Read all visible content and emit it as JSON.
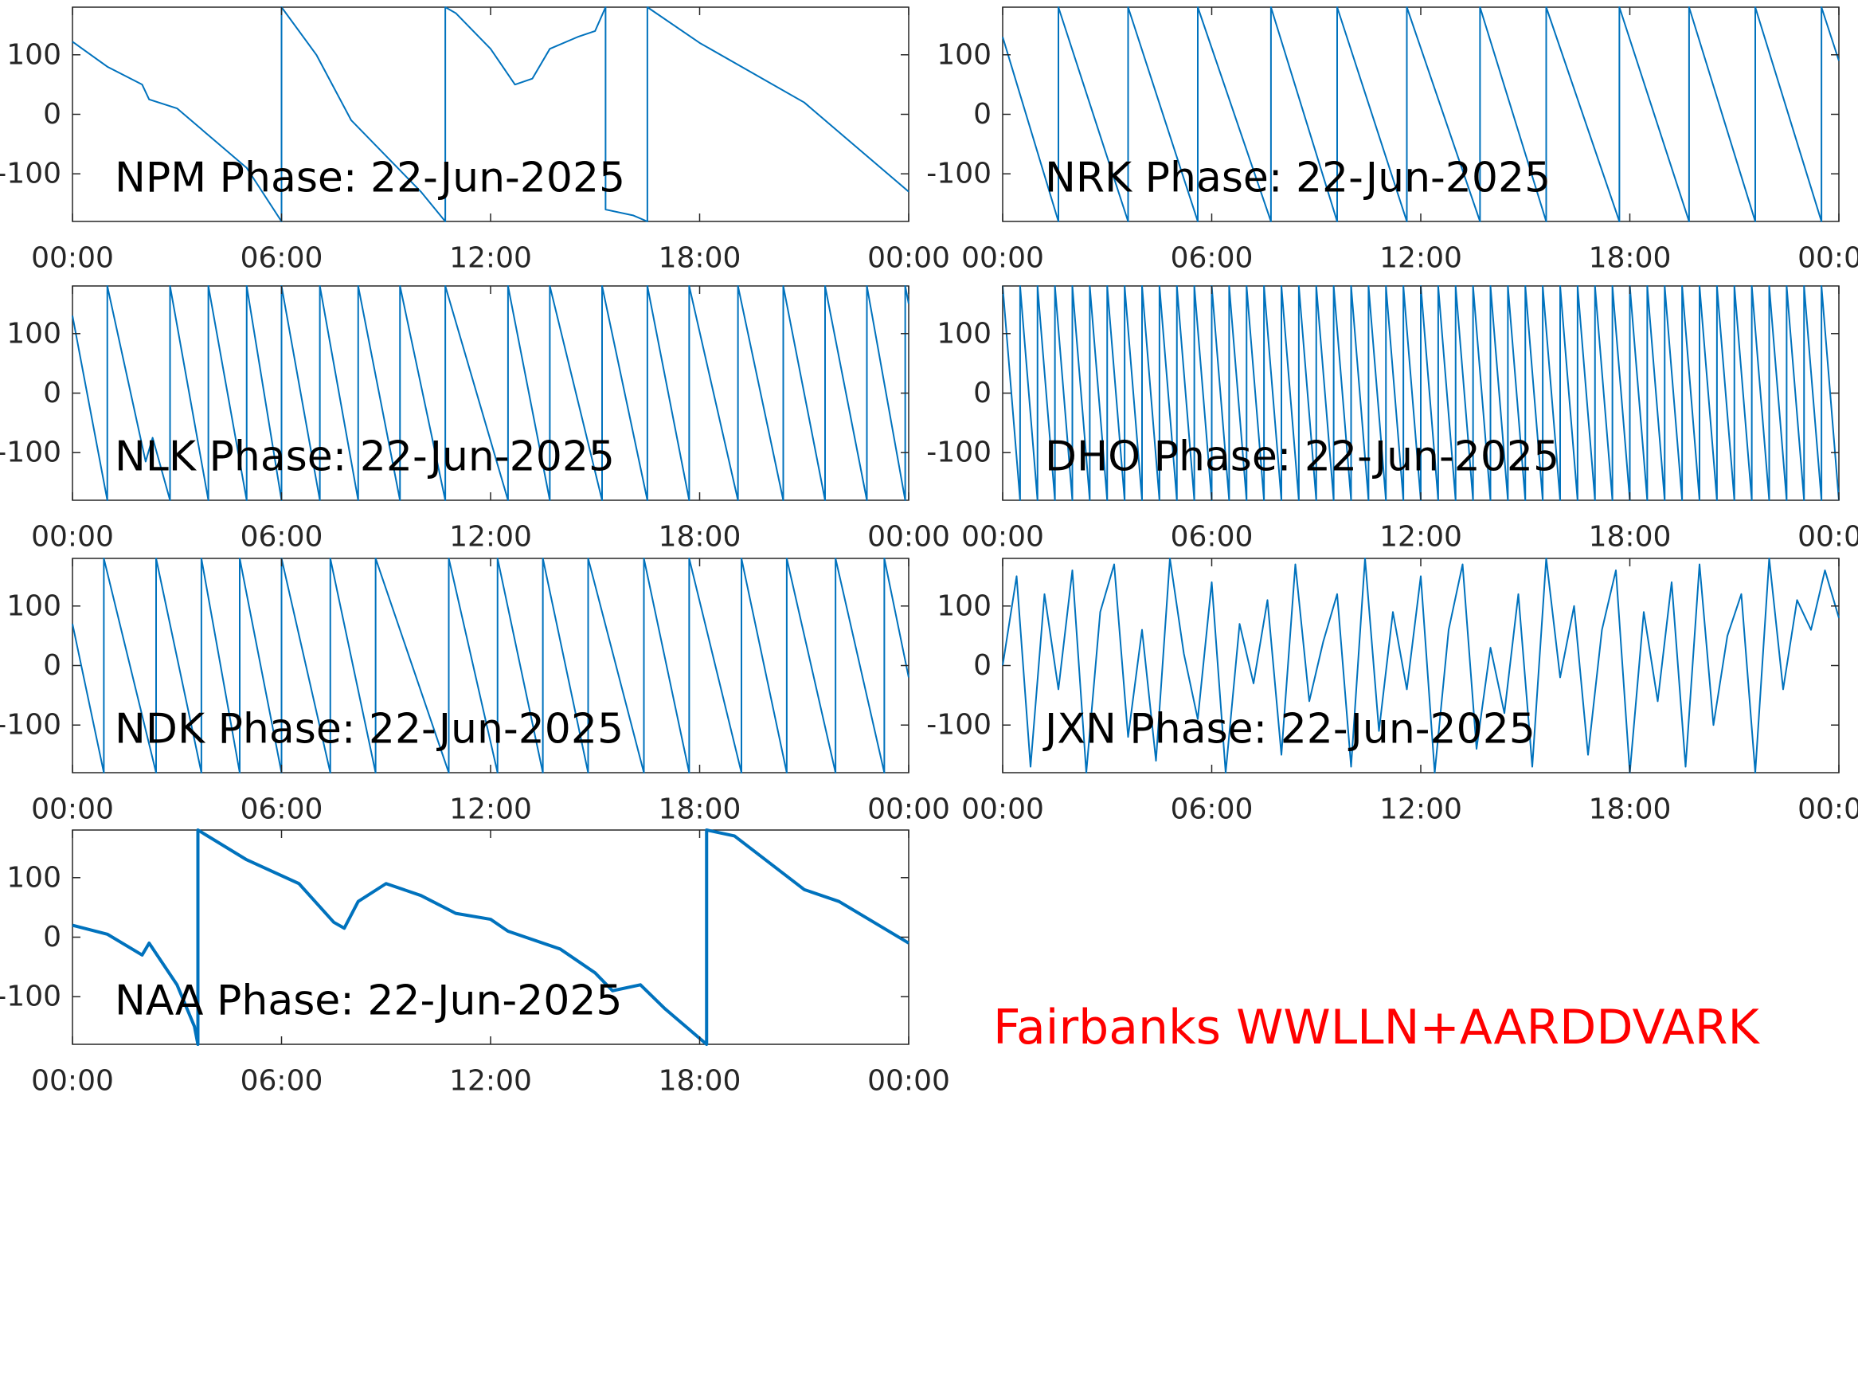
{
  "chart_data": [
    {
      "type": "line",
      "title": "NPM Phase: 22-Jun-2025",
      "color": "#0072bd",
      "line_width": 2,
      "x": [
        0,
        1,
        2,
        2.2,
        3,
        4,
        5,
        6,
        6,
        7,
        8,
        9,
        10,
        10.7,
        10.7,
        11,
        12,
        12.7,
        13.2,
        13.7,
        14.5,
        15,
        15.3,
        15.3,
        16.1,
        16.5,
        16.5,
        18,
        21,
        24
      ],
      "values": [
        122,
        80,
        50,
        25,
        10,
        -40,
        -90,
        -180,
        180,
        100,
        -10,
        -70,
        -130,
        -180,
        180,
        170,
        110,
        50,
        60,
        110,
        130,
        140,
        180,
        -160,
        -170,
        -180,
        180,
        120,
        20,
        -130
      ],
      "xlim": [
        0,
        24
      ],
      "xticks": [
        {
          "value": 0,
          "label": "00:00"
        },
        {
          "value": 6,
          "label": "06:00"
        },
        {
          "value": 12,
          "label": "12:00"
        },
        {
          "value": 18,
          "label": "18:00"
        },
        {
          "value": 24,
          "label": "00:00"
        }
      ],
      "ylim": [
        -180,
        180
      ],
      "yticks": [
        -100,
        0,
        100
      ]
    },
    {
      "type": "line",
      "title": "NRK Phase: 22-Jun-2025",
      "color": "#0072bd",
      "line_width": 2,
      "x": [
        0,
        1.6,
        1.6,
        3.6,
        3.6,
        5.6,
        5.6,
        7.7,
        7.7,
        9.6,
        9.6,
        11.6,
        11.6,
        13.7,
        13.7,
        15.6,
        15.6,
        17.7,
        17.7,
        19.7,
        19.7,
        21.6,
        21.6,
        23.5,
        23.5,
        24
      ],
      "values": [
        130,
        -180,
        180,
        -180,
        180,
        -180,
        180,
        -180,
        180,
        -180,
        180,
        -180,
        180,
        -180,
        180,
        -180,
        180,
        -180,
        180,
        -180,
        180,
        -180,
        180,
        -180,
        180,
        90
      ],
      "xlim": [
        0,
        24
      ],
      "xticks": [
        {
          "value": 0,
          "label": "00:00"
        },
        {
          "value": 6,
          "label": "06:00"
        },
        {
          "value": 12,
          "label": "12:00"
        },
        {
          "value": 18,
          "label": "18:00"
        },
        {
          "value": 24,
          "label": "00:00"
        }
      ],
      "ylim": [
        -180,
        180
      ],
      "yticks": [
        -100,
        0,
        100
      ]
    },
    {
      "type": "line",
      "title": "NLK Phase: 22-Jun-2025",
      "color": "#0072bd",
      "line_width": 2,
      "x": [
        0,
        1,
        1,
        2.1,
        2.3,
        2.8,
        2.8,
        3.9,
        3.9,
        5,
        5,
        6,
        6,
        7.1,
        7.1,
        8.2,
        8.2,
        9.4,
        9.4,
        10.7,
        10.7,
        12.5,
        12.5,
        13.7,
        13.7,
        15.2,
        15.2,
        16.5,
        16.5,
        17.7,
        17.7,
        19.1,
        19.1,
        20.4,
        20.4,
        21.6,
        21.6,
        22.8,
        22.8,
        23.9,
        23.9,
        24
      ],
      "values": [
        130,
        -180,
        180,
        -115,
        -75,
        -180,
        180,
        -180,
        180,
        -180,
        180,
        -180,
        180,
        -180,
        180,
        -180,
        180,
        -180,
        180,
        -180,
        180,
        -180,
        180,
        -180,
        180,
        -180,
        180,
        -180,
        180,
        -180,
        180,
        -180,
        180,
        -180,
        180,
        -180,
        180,
        -180,
        180,
        -180,
        180,
        150
      ],
      "xlim": [
        0,
        24
      ],
      "xticks": [
        {
          "value": 0,
          "label": "00:00"
        },
        {
          "value": 6,
          "label": "06:00"
        },
        {
          "value": 12,
          "label": "12:00"
        },
        {
          "value": 18,
          "label": "18:00"
        },
        {
          "value": 24,
          "label": "00:00"
        }
      ],
      "ylim": [
        -180,
        180
      ],
      "yticks": [
        -100,
        0,
        100
      ]
    },
    {
      "type": "line",
      "title": "DHO Phase: 22-Jun-2025",
      "color": "#0072bd",
      "line_width": 2,
      "x": [
        0,
        0.5,
        0.5,
        1,
        1,
        1.5,
        1.5,
        2,
        2,
        2.5,
        2.5,
        3,
        3,
        3.5,
        3.5,
        4,
        4,
        4.5,
        4.5,
        5,
        5,
        5.5,
        5.5,
        6,
        6,
        6.5,
        6.5,
        7,
        7,
        7.5,
        7.5,
        8,
        8,
        8.5,
        8.5,
        9,
        9,
        9.5,
        9.5,
        10,
        10,
        10.5,
        10.5,
        11,
        11,
        11.5,
        11.5,
        12,
        12,
        12.5,
        12.5,
        13,
        13,
        13.5,
        13.5,
        14,
        14,
        14.5,
        14.5,
        15,
        15,
        15.5,
        15.5,
        16,
        16,
        16.5,
        16.5,
        17,
        17,
        17.5,
        17.5,
        18,
        18,
        18.5,
        18.5,
        19,
        19,
        19.5,
        19.5,
        20,
        20,
        20.5,
        20.5,
        21,
        21,
        21.5,
        21.5,
        22,
        22,
        22.5,
        22.5,
        23,
        23,
        23.5,
        23.5,
        24
      ],
      "values": [
        180,
        -180,
        180,
        -180,
        180,
        -180,
        180,
        -180,
        180,
        -180,
        180,
        -180,
        180,
        -180,
        180,
        -180,
        180,
        -180,
        180,
        -180,
        180,
        -180,
        180,
        -180,
        180,
        -180,
        180,
        -180,
        180,
        -180,
        180,
        -180,
        180,
        -180,
        180,
        -180,
        180,
        -180,
        180,
        -180,
        180,
        -180,
        180,
        -180,
        180,
        -180,
        180,
        -180,
        180,
        -180,
        180,
        -180,
        180,
        -180,
        180,
        -180,
        180,
        -180,
        180,
        -180,
        180,
        -180,
        180,
        -180,
        180,
        -180,
        180,
        -180,
        180,
        -180,
        180,
        -180,
        180,
        -180,
        180,
        -180,
        180,
        -180,
        180,
        -180,
        180,
        -180,
        180,
        -180,
        180,
        -180,
        180,
        -180,
        180,
        -180,
        180,
        -180,
        180,
        -180,
        180,
        -180
      ],
      "xlim": [
        0,
        24
      ],
      "xticks": [
        {
          "value": 0,
          "label": "00:00"
        },
        {
          "value": 6,
          "label": "06:00"
        },
        {
          "value": 12,
          "label": "12:00"
        },
        {
          "value": 18,
          "label": "18:00"
        },
        {
          "value": 24,
          "label": "00:00"
        }
      ],
      "ylim": [
        -180,
        180
      ],
      "yticks": [
        -100,
        0,
        100
      ]
    },
    {
      "type": "line",
      "title": "NDK Phase: 22-Jun-2025",
      "color": "#0072bd",
      "line_width": 2,
      "x": [
        0,
        0.9,
        0.9,
        2.4,
        2.4,
        3.7,
        3.7,
        4.8,
        4.8,
        6,
        6,
        7.4,
        7.4,
        8.7,
        8.7,
        10.8,
        10.8,
        12.2,
        12.2,
        13.5,
        13.5,
        14.8,
        14.8,
        16.4,
        16.4,
        17.7,
        17.7,
        19.2,
        19.2,
        20.5,
        20.5,
        21.9,
        21.9,
        23.3,
        23.3,
        24
      ],
      "values": [
        70,
        -180,
        180,
        -180,
        180,
        -180,
        180,
        -180,
        180,
        -180,
        180,
        -180,
        180,
        -180,
        180,
        -180,
        180,
        -180,
        180,
        -180,
        180,
        -180,
        180,
        -180,
        180,
        -180,
        180,
        -180,
        180,
        -180,
        180,
        -180,
        180,
        -180,
        180,
        -20
      ],
      "xlim": [
        0,
        24
      ],
      "xticks": [
        {
          "value": 0,
          "label": "00:00"
        },
        {
          "value": 6,
          "label": "06:00"
        },
        {
          "value": 12,
          "label": "12:00"
        },
        {
          "value": 18,
          "label": "18:00"
        },
        {
          "value": 24,
          "label": "00:00"
        }
      ],
      "ylim": [
        -180,
        180
      ],
      "yticks": [
        -100,
        0,
        100
      ]
    },
    {
      "type": "line",
      "title": "JXN Phase: 22-Jun-2025",
      "color": "#0072bd",
      "line_width": 2,
      "x": [
        0,
        0.4,
        0.8,
        1.2,
        1.6,
        2,
        2.4,
        2.8,
        3.2,
        3.6,
        4,
        4.4,
        4.8,
        5.2,
        5.6,
        6,
        6.4,
        6.8,
        7.2,
        7.6,
        8,
        8.4,
        8.8,
        9.2,
        9.6,
        10,
        10.4,
        10.8,
        11.2,
        11.6,
        12,
        12.4,
        12.8,
        13.2,
        13.6,
        14,
        14.4,
        14.8,
        15.2,
        15.6,
        16,
        16.4,
        16.8,
        17.2,
        17.6,
        18,
        18.4,
        18.8,
        19.2,
        19.6,
        20,
        20.4,
        20.8,
        21.2,
        21.6,
        22,
        22.4,
        22.8,
        23.2,
        23.6,
        24
      ],
      "values": [
        0,
        150,
        -170,
        120,
        -40,
        160,
        -180,
        90,
        170,
        -120,
        60,
        -160,
        180,
        20,
        -90,
        140,
        -180,
        70,
        -30,
        110,
        -150,
        170,
        -60,
        40,
        120,
        -170,
        180,
        -110,
        90,
        -40,
        150,
        -180,
        60,
        170,
        -140,
        30,
        -80,
        120,
        -170,
        180,
        -20,
        100,
        -150,
        60,
        160,
        -180,
        90,
        -60,
        140,
        -170,
        170,
        -100,
        50,
        120,
        -180,
        180,
        -40,
        110,
        60,
        160,
        80
      ],
      "xlim": [
        0,
        24
      ],
      "xticks": [
        {
          "value": 0,
          "label": "00:00"
        },
        {
          "value": 6,
          "label": "06:00"
        },
        {
          "value": 12,
          "label": "12:00"
        },
        {
          "value": 18,
          "label": "18:00"
        },
        {
          "value": 24,
          "label": "00:00"
        }
      ],
      "ylim": [
        -180,
        180
      ],
      "yticks": [
        -100,
        0,
        100
      ]
    },
    {
      "type": "line",
      "title": "NAA Phase: 22-Jun-2025",
      "color": "#0072bd",
      "line_width": 4,
      "x": [
        0,
        1,
        2,
        2.2,
        3,
        3.5,
        3.6,
        3.6,
        5,
        6.5,
        7.5,
        7.8,
        8.2,
        9,
        10,
        11,
        12,
        12.5,
        14,
        15,
        15.5,
        16.3,
        17,
        18.2,
        18.2,
        19,
        21,
        22,
        24
      ],
      "values": [
        20,
        5,
        -30,
        -10,
        -80,
        -150,
        -180,
        180,
        130,
        90,
        25,
        15,
        60,
        90,
        70,
        40,
        30,
        10,
        -20,
        -60,
        -90,
        -80,
        -120,
        -180,
        180,
        170,
        80,
        60,
        -10
      ],
      "xlim": [
        0,
        24
      ],
      "xticks": [
        {
          "value": 0,
          "label": "00:00"
        },
        {
          "value": 6,
          "label": "06:00"
        },
        {
          "value": 12,
          "label": "12:00"
        },
        {
          "value": 18,
          "label": "18:00"
        },
        {
          "value": 24,
          "label": "00:00"
        }
      ],
      "ylim": [
        -180,
        180
      ],
      "yticks": [
        -100,
        0,
        100
      ]
    }
  ],
  "annotation": "Fairbanks WWLLN+AARDDVARK",
  "annotation_color": "#ff0000"
}
